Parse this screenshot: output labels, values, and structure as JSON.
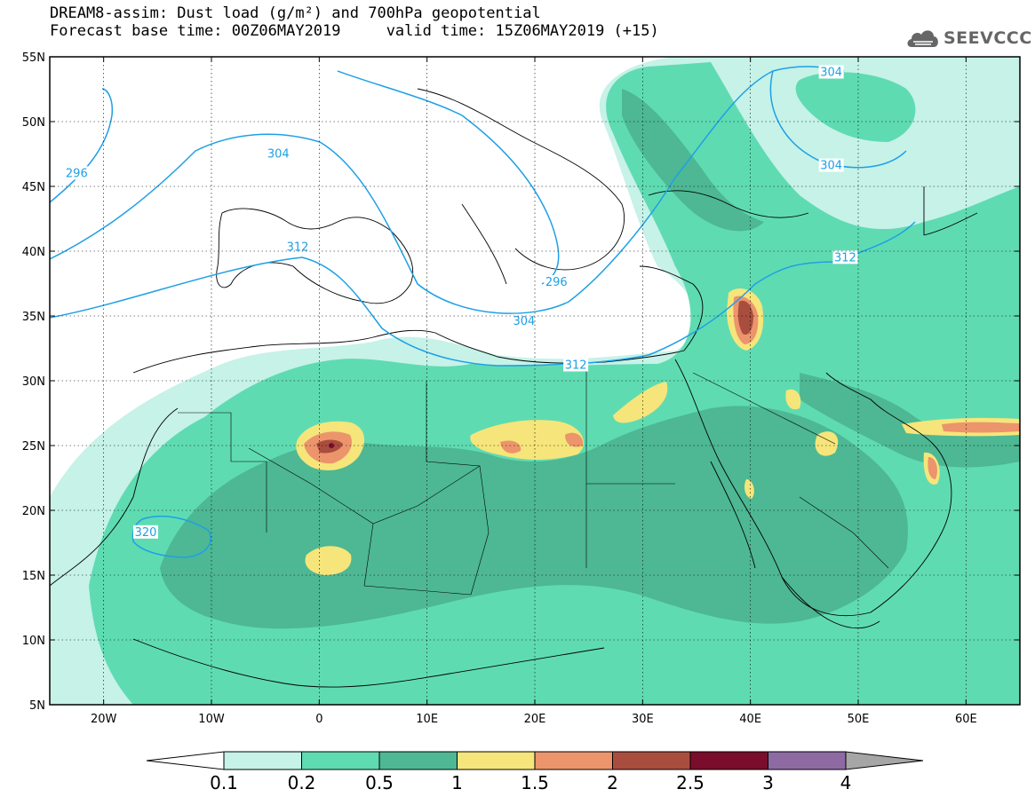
{
  "header": {
    "title_line1": "DREAM8-assim: Dust load (g/m²) and 700hPa geopotential",
    "title_line2": "Forecast base time: 00Z06MAY2019     valid time: 15Z06MAY2019 (+15)"
  },
  "logo": {
    "text": "SEEVCCC",
    "icon": "cloud-logo-icon"
  },
  "map": {
    "projection": "lat-lon",
    "lon_range": [
      -25,
      65
    ],
    "lat_range": [
      5,
      55
    ],
    "lat_ticks": [
      {
        "value": 55,
        "label": "55N"
      },
      {
        "value": 50,
        "label": "50N"
      },
      {
        "value": 45,
        "label": "45N"
      },
      {
        "value": 40,
        "label": "40N"
      },
      {
        "value": 35,
        "label": "35N"
      },
      {
        "value": 30,
        "label": "30N"
      },
      {
        "value": 25,
        "label": "25N"
      },
      {
        "value": 20,
        "label": "20N"
      },
      {
        "value": 15,
        "label": "15N"
      },
      {
        "value": 10,
        "label": "10N"
      },
      {
        "value": 5,
        "label": "5N"
      }
    ],
    "lon_ticks": [
      {
        "value": -20,
        "label": "20W"
      },
      {
        "value": -10,
        "label": "10W"
      },
      {
        "value": 0,
        "label": "0"
      },
      {
        "value": 10,
        "label": "10E"
      },
      {
        "value": 20,
        "label": "20E"
      },
      {
        "value": 30,
        "label": "30E"
      },
      {
        "value": 40,
        "label": "40E"
      },
      {
        "value": 50,
        "label": "50E"
      },
      {
        "value": 60,
        "label": "60E"
      }
    ],
    "gridlines": true,
    "contour_color": "#1ea0e6",
    "contour_labels": [
      {
        "label": "296",
        "lon": -22.5,
        "lat": 46.0
      },
      {
        "label": "304",
        "lon": -3.8,
        "lat": 47.5
      },
      {
        "label": "304",
        "lon": 47.5,
        "lat": 53.8
      },
      {
        "label": "304",
        "lon": 47.5,
        "lat": 46.6
      },
      {
        "label": "312",
        "lon": -2.0,
        "lat": 40.3
      },
      {
        "label": "312",
        "lon": 23.8,
        "lat": 31.2
      },
      {
        "label": "312",
        "lon": 48.8,
        "lat": 39.5
      },
      {
        "label": "304",
        "lon": 19.0,
        "lat": 34.6
      },
      {
        "label": "296",
        "lon": 22.0,
        "lat": 37.6
      },
      {
        "label": "320",
        "lon": -16.1,
        "lat": 18.3
      }
    ]
  },
  "colorbar": {
    "levels": [
      "0.1",
      "0.2",
      "0.5",
      "1",
      "1.5",
      "2",
      "2.5",
      "3",
      "4"
    ],
    "colors": [
      "#c6f2e8",
      "#5fdbb2",
      "#4db893",
      "#f6e57a",
      "#ec946c",
      "#a94d3e",
      "#7a0d2c",
      "#8e6aa3",
      "#a6a6a6"
    ],
    "under_color": "#ffffff"
  }
}
